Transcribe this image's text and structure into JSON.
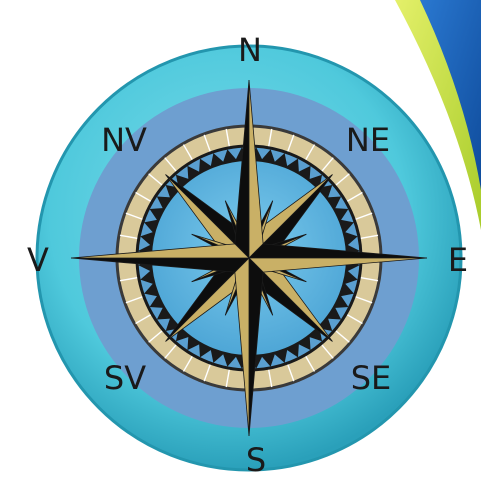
{
  "compass": {
    "directions": {
      "n": "N",
      "ne": "NE",
      "e": "E",
      "se": "SE",
      "s": "S",
      "sv": "SV",
      "v": "V",
      "nv": "NV"
    }
  },
  "colors": {
    "outer_ring": "#4fc9dc",
    "outer_ring_dark": "#2aa8c0",
    "middle_disc": "#6ea3d2",
    "inner_disc": "#5ab0dc",
    "tan_band": "#d9c99a",
    "star_gold": "#c9b066",
    "star_black": "#0d0d0d",
    "corner_blue": "#1e5fb5",
    "corner_green": "#b5d534",
    "label": "#1a1a1a"
  }
}
